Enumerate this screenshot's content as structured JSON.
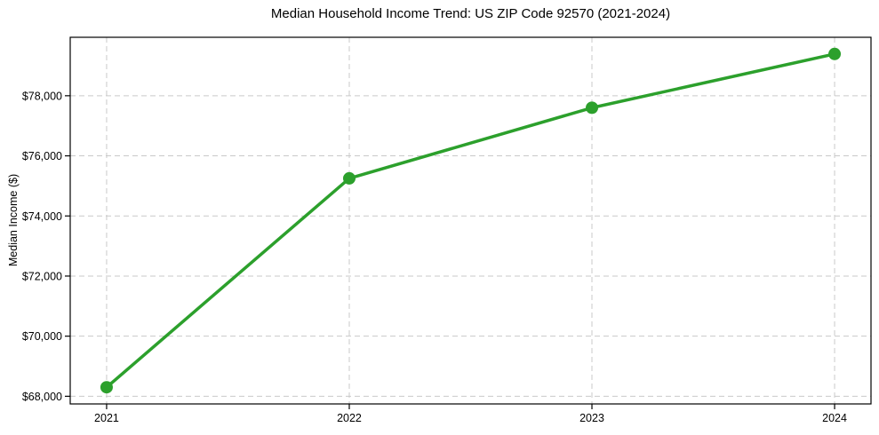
{
  "chart_data": {
    "type": "line",
    "title": "Median Household Income Trend: US ZIP Code 92570 (2021-2024)",
    "xlabel": "",
    "ylabel": "Median Income ($)",
    "x": [
      2021,
      2022,
      2023,
      2024
    ],
    "x_tick_labels": [
      "2021",
      "2022",
      "2023",
      "2024"
    ],
    "values": [
      68300,
      75250,
      77600,
      79390
    ],
    "y_tick_values": [
      68000,
      70000,
      72000,
      74000,
      76000,
      78000
    ],
    "y_tick_labels": [
      "$68,000",
      "$70,000",
      "$72,000",
      "$74,000",
      "$76,000",
      "$78,000"
    ],
    "xlim": [
      2020.85,
      2024.15
    ],
    "ylim": [
      67745,
      79945
    ],
    "grid": {
      "visible": true,
      "style": "dashed",
      "axes": "both"
    },
    "legend": "none",
    "colors": {
      "line": "#2ca02c",
      "marker": "#2ca02c",
      "grid": "#c9c9c9",
      "axis": "#000000",
      "text": "#000000",
      "background": "#ffffff"
    }
  }
}
